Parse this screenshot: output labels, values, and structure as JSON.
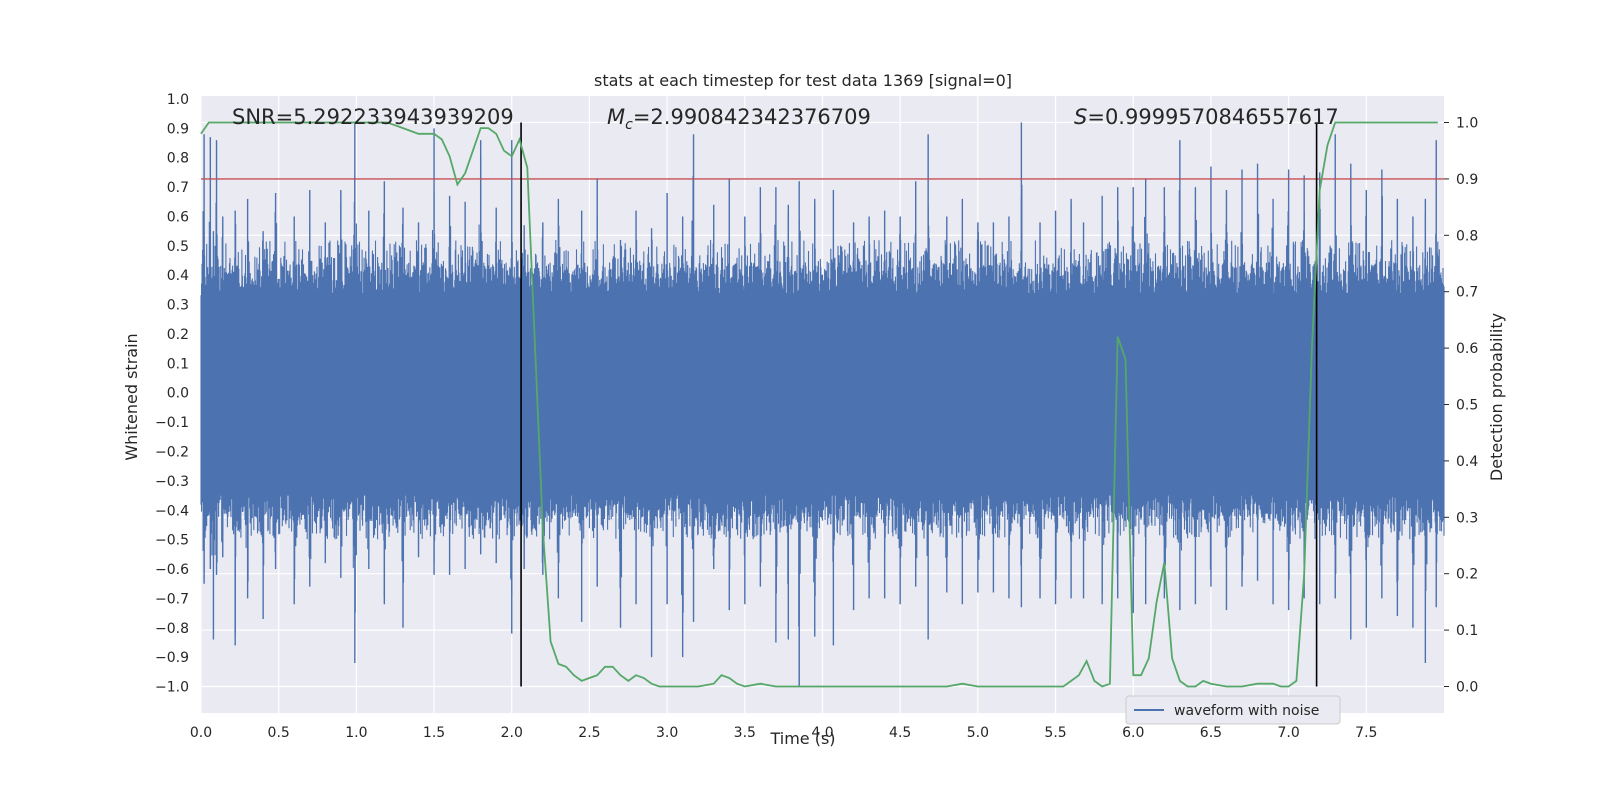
{
  "chart_data": {
    "type": "line",
    "title": "stats at each timestep for test data 1369 [signal=0]",
    "xlabel": "Time (s)",
    "ylabel": "Whitened strain",
    "y2label": "Detection probability",
    "xlim": [
      0,
      8
    ],
    "ylim": [
      -1.09,
      1.01
    ],
    "y2lim": [
      -0.047,
      1.047
    ],
    "xticks": [
      "0.0",
      "0.5",
      "1.0",
      "1.5",
      "2.0",
      "2.5",
      "3.0",
      "3.5",
      "4.0",
      "4.5",
      "5.0",
      "5.5",
      "6.0",
      "6.5",
      "7.0",
      "7.5"
    ],
    "yticks": [
      "−1.0",
      "−0.9",
      "−0.8",
      "−0.7",
      "−0.6",
      "−0.5",
      "−0.4",
      "−0.3",
      "−0.2",
      "−0.1",
      "0.0",
      "0.1",
      "0.2",
      "0.3",
      "0.4",
      "0.5",
      "0.6",
      "0.7",
      "0.8",
      "0.9",
      "1.0"
    ],
    "y2ticks": [
      "0.0",
      "0.1",
      "0.2",
      "0.3",
      "0.4",
      "0.5",
      "0.6",
      "0.7",
      "0.8",
      "0.9",
      "1.0"
    ],
    "grid": true,
    "background": "#eaeaf2",
    "annotations": {
      "snr": "SNR=5.292233943939209",
      "mc_value": "=2.990842342376709",
      "s_value": "=0.9999570846557617"
    },
    "threshold": {
      "value": 0.9,
      "axis": "right",
      "color": "#c44e52"
    },
    "markers": {
      "x": [
        2.06,
        7.18
      ],
      "color": "#000000"
    },
    "legend": {
      "label": "waveform with noise",
      "position": "lower-right"
    },
    "series": [
      {
        "name": "waveform with noise",
        "axis": "left",
        "color": "#4c72b0",
        "note": "dense noise trace; envelope peaks (x, max, min)",
        "peaks": [
          [
            0.02,
            0.88,
            -0.65
          ],
          [
            0.06,
            0.87,
            -0.6
          ],
          [
            0.08,
            0.55,
            -0.84
          ],
          [
            0.1,
            0.86,
            -0.62
          ],
          [
            0.14,
            0.6,
            -0.56
          ],
          [
            0.22,
            0.62,
            -0.82
          ],
          [
            0.22,
            0.55,
            -0.86
          ],
          [
            0.3,
            0.66,
            -0.7
          ],
          [
            0.4,
            0.55,
            -0.77
          ],
          [
            0.48,
            0.68,
            -0.6
          ],
          [
            0.6,
            0.6,
            -0.72
          ],
          [
            0.7,
            0.69,
            -0.66
          ],
          [
            0.8,
            0.58,
            -0.58
          ],
          [
            0.9,
            0.69,
            -0.63
          ],
          [
            0.99,
            0.92,
            -0.92
          ],
          [
            1.08,
            0.62,
            -0.6
          ],
          [
            1.18,
            0.72,
            -0.72
          ],
          [
            1.3,
            0.63,
            -0.8
          ],
          [
            1.4,
            0.58,
            -0.56
          ],
          [
            1.5,
            0.9,
            -0.62
          ],
          [
            1.6,
            0.67,
            -0.62
          ],
          [
            1.7,
            0.65,
            -0.6
          ],
          [
            1.8,
            0.86,
            -0.55
          ],
          [
            1.9,
            0.63,
            -0.58
          ],
          [
            2.0,
            0.86,
            -0.82
          ],
          [
            2.08,
            0.57,
            -0.6
          ],
          [
            2.2,
            0.58,
            -0.62
          ],
          [
            2.3,
            0.66,
            -0.7
          ],
          [
            2.45,
            0.62,
            -0.78
          ],
          [
            2.55,
            0.73,
            -0.66
          ],
          [
            2.7,
            0.52,
            -0.8
          ],
          [
            2.8,
            0.62,
            -0.72
          ],
          [
            2.9,
            0.56,
            -0.9
          ],
          [
            3.0,
            0.68,
            -0.72
          ],
          [
            3.1,
            0.6,
            -0.9
          ],
          [
            3.17,
            0.88,
            -0.78
          ],
          [
            3.3,
            0.64,
            -0.6
          ],
          [
            3.4,
            0.73,
            -0.74
          ],
          [
            3.5,
            0.6,
            -0.72
          ],
          [
            3.6,
            0.7,
            -0.66
          ],
          [
            3.7,
            0.7,
            -0.85
          ],
          [
            3.78,
            0.64,
            -0.84
          ],
          [
            3.85,
            0.72,
            -1.0
          ],
          [
            3.95,
            0.66,
            -0.83
          ],
          [
            4.07,
            0.69,
            -0.86
          ],
          [
            4.2,
            0.58,
            -0.74
          ],
          [
            4.3,
            0.6,
            -0.7
          ],
          [
            4.4,
            0.62,
            -0.7
          ],
          [
            4.5,
            0.6,
            -0.72
          ],
          [
            4.6,
            0.72,
            -0.66
          ],
          [
            4.68,
            0.88,
            -0.84
          ],
          [
            4.8,
            0.6,
            -0.68
          ],
          [
            4.9,
            0.66,
            -0.72
          ],
          [
            5.0,
            0.58,
            -0.68
          ],
          [
            5.1,
            0.58,
            -0.68
          ],
          [
            5.2,
            0.6,
            -0.7
          ],
          [
            5.28,
            0.92,
            -0.73
          ],
          [
            5.4,
            0.58,
            -0.7
          ],
          [
            5.5,
            0.62,
            -0.72
          ],
          [
            5.6,
            0.66,
            -0.7
          ],
          [
            5.68,
            0.58,
            -0.7
          ],
          [
            5.8,
            0.67,
            -0.72
          ],
          [
            5.9,
            0.7,
            -0.7
          ],
          [
            6.0,
            0.7,
            -0.75
          ],
          [
            6.08,
            0.73,
            -0.72
          ],
          [
            6.2,
            0.7,
            -0.7
          ],
          [
            6.3,
            0.86,
            -0.74
          ],
          [
            6.4,
            0.7,
            -0.72
          ],
          [
            6.5,
            0.77,
            -0.66
          ],
          [
            6.6,
            0.69,
            -0.74
          ],
          [
            6.7,
            0.76,
            -0.66
          ],
          [
            6.8,
            0.78,
            -0.64
          ],
          [
            6.9,
            0.66,
            -0.72
          ],
          [
            7.0,
            0.76,
            -0.74
          ],
          [
            7.1,
            0.74,
            -0.7
          ],
          [
            7.2,
            0.75,
            -0.72
          ],
          [
            7.3,
            0.88,
            -0.7
          ],
          [
            7.4,
            0.78,
            -0.84
          ],
          [
            7.5,
            0.69,
            -0.8
          ],
          [
            7.6,
            0.76,
            -0.7
          ],
          [
            7.7,
            0.66,
            -0.76
          ],
          [
            7.8,
            0.6,
            -0.8
          ],
          [
            7.88,
            0.66,
            -0.92
          ],
          [
            7.95,
            0.86,
            -0.73
          ]
        ]
      },
      {
        "name": "",
        "axis": "right",
        "color": "#55a868",
        "points": [
          [
            0.0,
            0.98
          ],
          [
            0.05,
            1.0
          ],
          [
            0.1,
            1.0
          ],
          [
            0.2,
            1.0
          ],
          [
            0.3,
            1.0
          ],
          [
            0.4,
            1.0
          ],
          [
            0.5,
            1.0
          ],
          [
            0.6,
            1.0
          ],
          [
            0.7,
            1.0
          ],
          [
            0.8,
            1.0
          ],
          [
            0.9,
            1.0
          ],
          [
            1.0,
            1.0
          ],
          [
            1.1,
            1.0
          ],
          [
            1.2,
            1.0
          ],
          [
            1.3,
            0.99
          ],
          [
            1.4,
            0.98
          ],
          [
            1.5,
            0.98
          ],
          [
            1.55,
            0.97
          ],
          [
            1.6,
            0.94
          ],
          [
            1.65,
            0.89
          ],
          [
            1.7,
            0.91
          ],
          [
            1.75,
            0.95
          ],
          [
            1.8,
            0.99
          ],
          [
            1.85,
            0.99
          ],
          [
            1.9,
            0.98
          ],
          [
            1.95,
            0.95
          ],
          [
            2.0,
            0.94
          ],
          [
            2.05,
            0.97
          ],
          [
            2.1,
            0.92
          ],
          [
            2.15,
            0.6
          ],
          [
            2.2,
            0.28
          ],
          [
            2.25,
            0.08
          ],
          [
            2.3,
            0.04
          ],
          [
            2.35,
            0.035
          ],
          [
            2.4,
            0.02
          ],
          [
            2.45,
            0.01
          ],
          [
            2.5,
            0.015
          ],
          [
            2.55,
            0.02
          ],
          [
            2.6,
            0.035
          ],
          [
            2.65,
            0.035
          ],
          [
            2.7,
            0.02
          ],
          [
            2.75,
            0.01
          ],
          [
            2.8,
            0.02
          ],
          [
            2.85,
            0.015
          ],
          [
            2.9,
            0.005
          ],
          [
            2.95,
            0.0
          ],
          [
            3.0,
            0.0
          ],
          [
            3.1,
            0.0
          ],
          [
            3.2,
            0.0
          ],
          [
            3.3,
            0.005
          ],
          [
            3.35,
            0.02
          ],
          [
            3.4,
            0.015
          ],
          [
            3.45,
            0.005
          ],
          [
            3.5,
            0.0
          ],
          [
            3.6,
            0.005
          ],
          [
            3.7,
            0.0
          ],
          [
            3.8,
            0.0
          ],
          [
            3.9,
            0.0
          ],
          [
            4.0,
            0.0
          ],
          [
            4.2,
            0.0
          ],
          [
            4.4,
            0.0
          ],
          [
            4.6,
            0.0
          ],
          [
            4.8,
            0.0
          ],
          [
            4.9,
            0.005
          ],
          [
            5.0,
            0.0
          ],
          [
            5.1,
            0.0
          ],
          [
            5.2,
            0.0
          ],
          [
            5.3,
            0.0
          ],
          [
            5.4,
            0.0
          ],
          [
            5.5,
            0.0
          ],
          [
            5.55,
            0.0
          ],
          [
            5.6,
            0.01
          ],
          [
            5.65,
            0.02
          ],
          [
            5.7,
            0.045
          ],
          [
            5.75,
            0.01
          ],
          [
            5.8,
            0.0
          ],
          [
            5.85,
            0.005
          ],
          [
            5.9,
            0.62
          ],
          [
            5.95,
            0.58
          ],
          [
            6.0,
            0.02
          ],
          [
            6.05,
            0.02
          ],
          [
            6.1,
            0.05
          ],
          [
            6.15,
            0.15
          ],
          [
            6.2,
            0.22
          ],
          [
            6.25,
            0.05
          ],
          [
            6.3,
            0.01
          ],
          [
            6.35,
            0.0
          ],
          [
            6.4,
            0.0
          ],
          [
            6.45,
            0.01
          ],
          [
            6.5,
            0.005
          ],
          [
            6.6,
            0.0
          ],
          [
            6.7,
            0.0
          ],
          [
            6.8,
            0.005
          ],
          [
            6.9,
            0.005
          ],
          [
            6.95,
            0.0
          ],
          [
            7.0,
            0.0
          ],
          [
            7.05,
            0.01
          ],
          [
            7.1,
            0.2
          ],
          [
            7.15,
            0.6
          ],
          [
            7.2,
            0.88
          ],
          [
            7.25,
            0.96
          ],
          [
            7.3,
            1.0
          ],
          [
            7.4,
            1.0
          ],
          [
            7.5,
            1.0
          ],
          [
            7.6,
            1.0
          ],
          [
            7.7,
            1.0
          ],
          [
            7.8,
            1.0
          ],
          [
            7.9,
            1.0
          ],
          [
            7.96,
            1.0
          ]
        ]
      }
    ]
  }
}
